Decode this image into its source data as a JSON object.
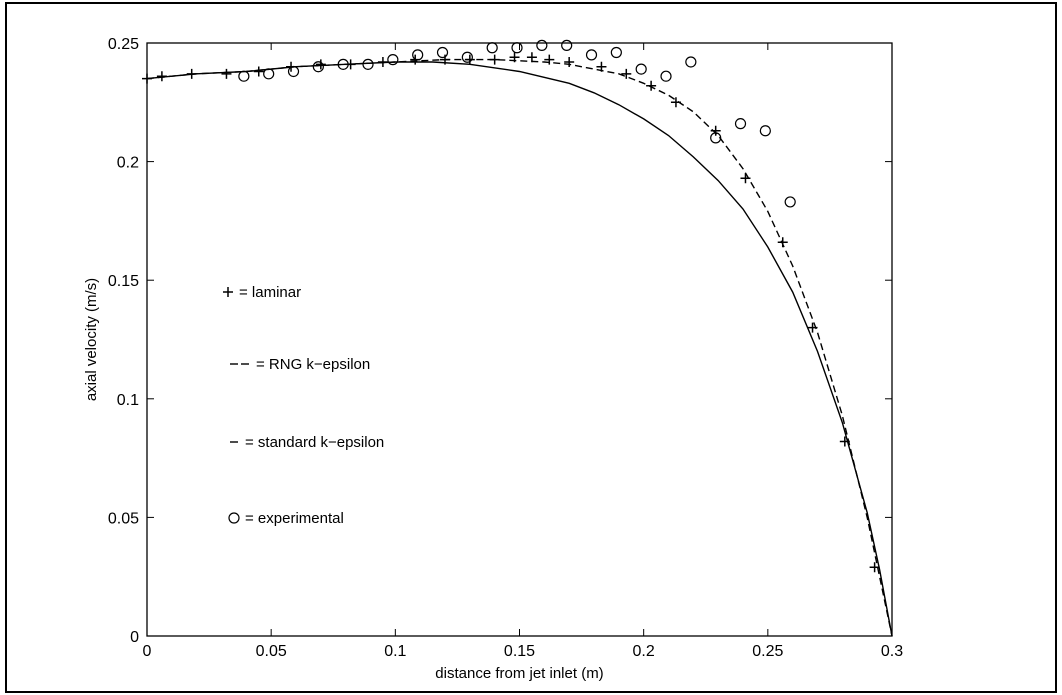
{
  "chart_data": {
    "type": "line",
    "title": "",
    "xlabel": "distance from jet inlet (m)",
    "ylabel": "axial velocity (m/s)",
    "xlim": [
      0,
      0.3
    ],
    "ylim": [
      0,
      0.25
    ],
    "xticks": [
      0,
      0.05,
      0.1,
      0.15,
      0.2,
      0.25,
      0.3
    ],
    "xtick_labels": [
      "0",
      "0.05",
      "0.1",
      "0.15",
      "0.2",
      "0.25",
      "0.3"
    ],
    "yticks": [
      0,
      0.05,
      0.1,
      0.15,
      0.2,
      0.25
    ],
    "ytick_labels": [
      "0",
      "0.05",
      "0.1",
      "0.15",
      "0.2",
      "0.25"
    ],
    "grid": false,
    "legend_position": "left",
    "series": [
      {
        "name": "laminar",
        "legend_text": "+ = laminar",
        "style": "plus",
        "x": [
          0,
          0.006,
          0.018,
          0.032,
          0.045,
          0.058,
          0.07,
          0.082,
          0.095,
          0.108,
          0.12,
          0.13,
          0.14,
          0.148,
          0.155,
          0.162,
          0.17,
          0.183,
          0.193,
          0.203,
          0.213,
          0.229,
          0.241,
          0.256,
          0.268,
          0.281,
          0.293
        ],
        "y": [
          0.235,
          0.236,
          0.237,
          0.237,
          0.238,
          0.24,
          0.241,
          0.241,
          0.242,
          0.243,
          0.243,
          0.243,
          0.243,
          0.244,
          0.244,
          0.243,
          0.242,
          0.24,
          0.237,
          0.232,
          0.225,
          0.213,
          0.193,
          0.166,
          0.13,
          0.082,
          0.029
        ]
      },
      {
        "name": "RNG k-epsilon",
        "legend_text": "= RNG k−epsilon",
        "style": "dashed",
        "x": [
          0,
          0.02,
          0.04,
          0.06,
          0.08,
          0.1,
          0.12,
          0.14,
          0.16,
          0.17,
          0.18,
          0.19,
          0.2,
          0.21,
          0.22,
          0.23,
          0.24,
          0.25,
          0.26,
          0.27,
          0.28,
          0.29,
          0.295,
          0.3
        ],
        "y": [
          0.235,
          0.237,
          0.238,
          0.24,
          0.241,
          0.242,
          0.243,
          0.243,
          0.242,
          0.241,
          0.239,
          0.237,
          0.233,
          0.228,
          0.221,
          0.211,
          0.197,
          0.179,
          0.156,
          0.128,
          0.093,
          0.05,
          0.025,
          0.0
        ]
      },
      {
        "name": "standard k-epsilon",
        "legend_text": "= standard k−epsilon",
        "style": "solid",
        "x": [
          0,
          0.02,
          0.04,
          0.06,
          0.08,
          0.1,
          0.115,
          0.13,
          0.15,
          0.17,
          0.18,
          0.19,
          0.2,
          0.21,
          0.22,
          0.23,
          0.24,
          0.25,
          0.26,
          0.27,
          0.28,
          0.29,
          0.295,
          0.3
        ],
        "y": [
          0.235,
          0.237,
          0.238,
          0.24,
          0.241,
          0.242,
          0.242,
          0.241,
          0.238,
          0.233,
          0.229,
          0.224,
          0.218,
          0.211,
          0.202,
          0.192,
          0.18,
          0.164,
          0.145,
          0.12,
          0.09,
          0.052,
          0.028,
          0.0
        ]
      },
      {
        "name": "experimental",
        "legend_text": "o = experimental",
        "style": "circle",
        "x": [
          0.039,
          0.049,
          0.059,
          0.069,
          0.079,
          0.089,
          0.099,
          0.109,
          0.119,
          0.129,
          0.139,
          0.149,
          0.159,
          0.169,
          0.179,
          0.189,
          0.199,
          0.209,
          0.219,
          0.229,
          0.239,
          0.249,
          0.259
        ],
        "y": [
          0.236,
          0.237,
          0.238,
          0.24,
          0.241,
          0.241,
          0.243,
          0.245,
          0.246,
          0.244,
          0.248,
          0.248,
          0.249,
          0.249,
          0.245,
          0.246,
          0.239,
          0.236,
          0.242,
          0.21,
          0.216,
          0.213,
          0.183
        ]
      }
    ]
  }
}
